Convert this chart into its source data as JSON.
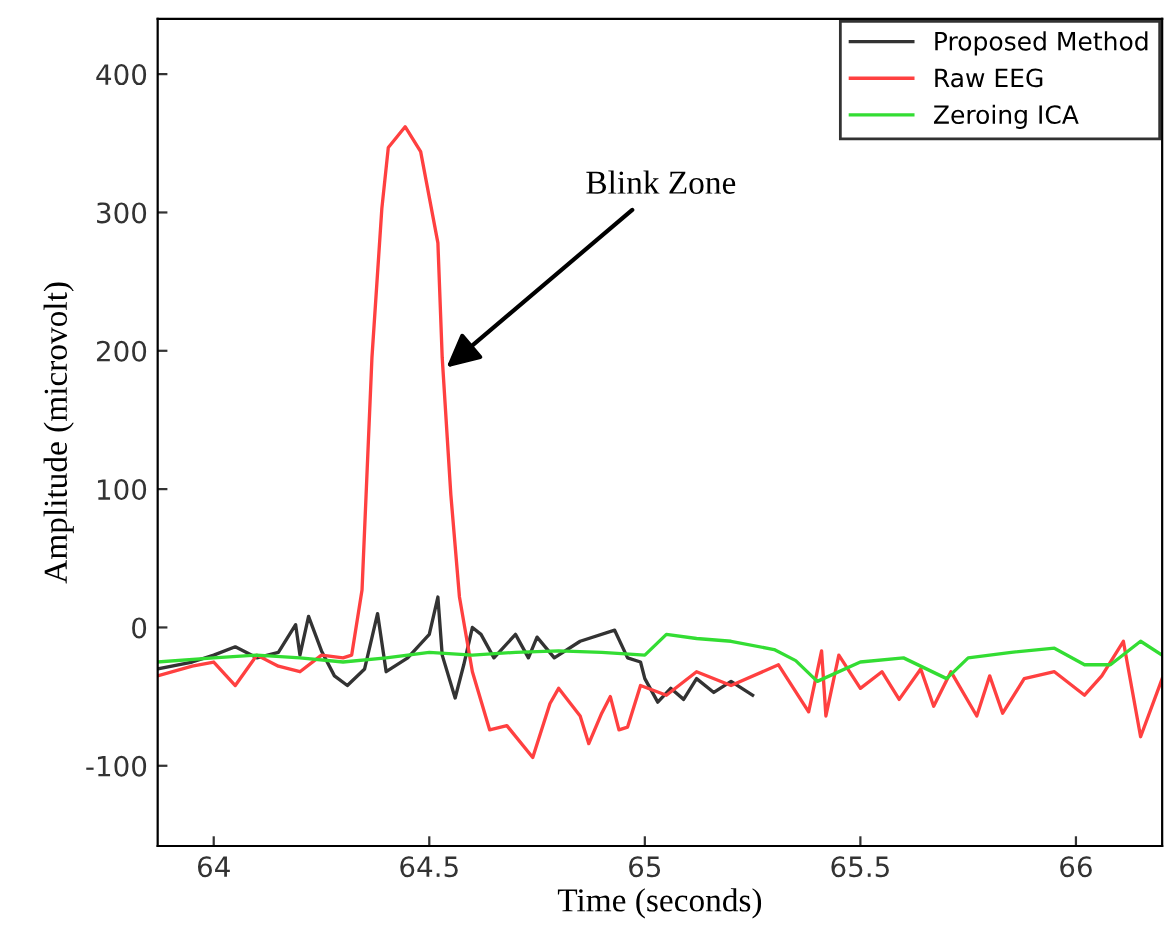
{
  "chart_data": {
    "type": "line",
    "xlabel": "Time (seconds)",
    "ylabel": "Amplitude (microvolt)",
    "xlim": [
      63.87,
      66.2
    ],
    "ylim": [
      -158,
      440
    ],
    "xticks": [
      64,
      64.5,
      65,
      65.5,
      66
    ],
    "yticks": [
      -100,
      0,
      100,
      200,
      300,
      400
    ],
    "legend": "top right",
    "grid": false,
    "annotations": [
      {
        "text": "Blink Zone",
        "x": 64.54,
        "y": 188
      }
    ],
    "series": [
      {
        "name": "Proposed Method",
        "color": "#333333",
        "x": [
          63.87,
          63.95,
          64.0,
          64.05,
          64.1,
          64.15,
          64.19,
          64.2,
          64.22,
          64.25,
          64.28,
          64.31,
          64.35,
          64.38,
          64.4,
          64.45,
          64.5,
          64.52,
          64.53,
          64.56,
          64.58,
          64.6,
          64.62,
          64.65,
          64.7,
          64.73,
          64.75,
          64.79,
          64.85,
          64.93,
          64.96,
          64.99,
          65.0,
          65.03,
          65.06,
          65.09,
          65.12,
          65.16,
          65.2,
          65.25
        ],
        "values": [
          -30,
          -25,
          -20,
          -14,
          -22,
          -18,
          2,
          -20,
          8,
          -17,
          -35,
          -42,
          -30,
          10,
          -32,
          -22,
          -5,
          22,
          -20,
          -51,
          -27,
          0,
          -5,
          -22,
          -5,
          -22,
          -7,
          -22,
          -10,
          -2,
          -22,
          -25,
          -37,
          -54,
          -44,
          -52,
          -37,
          -47,
          -39,
          -49
        ]
      },
      {
        "name": "Raw EEG",
        "color": "#ff4040",
        "x": [
          63.87,
          63.95,
          64.0,
          64.05,
          64.1,
          64.15,
          64.2,
          64.25,
          64.3,
          64.32,
          64.344,
          64.367,
          64.39,
          64.405,
          64.444,
          64.48,
          64.52,
          64.53,
          64.55,
          64.57,
          64.6,
          64.64,
          64.68,
          64.74,
          64.78,
          64.8,
          64.85,
          64.87,
          64.9,
          64.92,
          64.94,
          64.96,
          64.99,
          65.05,
          65.12,
          65.2,
          65.31,
          65.38,
          65.41,
          65.42,
          65.45,
          65.5,
          65.55,
          65.59,
          65.64,
          65.67,
          65.71,
          65.77,
          65.8,
          65.83,
          65.88,
          65.95,
          66.02,
          66.06,
          66.11,
          66.15,
          66.2
        ],
        "values": [
          -35,
          -28,
          -25,
          -42,
          -20,
          -28,
          -32,
          -20,
          -22,
          -20,
          27,
          195,
          303,
          347,
          362,
          344,
          278,
          195,
          96,
          22,
          -32,
          -74,
          -71,
          -94,
          -55,
          -44,
          -64,
          -84,
          -62,
          -50,
          -74,
          -72,
          -42,
          -49,
          -32,
          -42,
          -27,
          -61,
          -17,
          -64,
          -20,
          -44,
          -32,
          -52,
          -30,
          -57,
          -32,
          -64,
          -35,
          -62,
          -37,
          -32,
          -49,
          -35,
          -10,
          -79,
          -37
        ]
      },
      {
        "name": "Zeroing ICA",
        "color": "#33dd33",
        "x": [
          63.87,
          64.0,
          64.1,
          64.2,
          64.3,
          64.4,
          64.5,
          64.6,
          64.7,
          64.8,
          64.9,
          65.0,
          65.05,
          65.12,
          65.2,
          65.3,
          65.35,
          65.4,
          65.5,
          65.6,
          65.7,
          65.75,
          65.85,
          65.95,
          66.02,
          66.08,
          66.15,
          66.2
        ],
        "values": [
          -25,
          -22,
          -20,
          -22,
          -25,
          -22,
          -18,
          -20,
          -18,
          -17,
          -18,
          -20,
          -5,
          -8,
          -10,
          -16,
          -24,
          -39,
          -25,
          -22,
          -37,
          -22,
          -18,
          -15,
          -27,
          -27,
          -10,
          -20
        ]
      }
    ]
  }
}
